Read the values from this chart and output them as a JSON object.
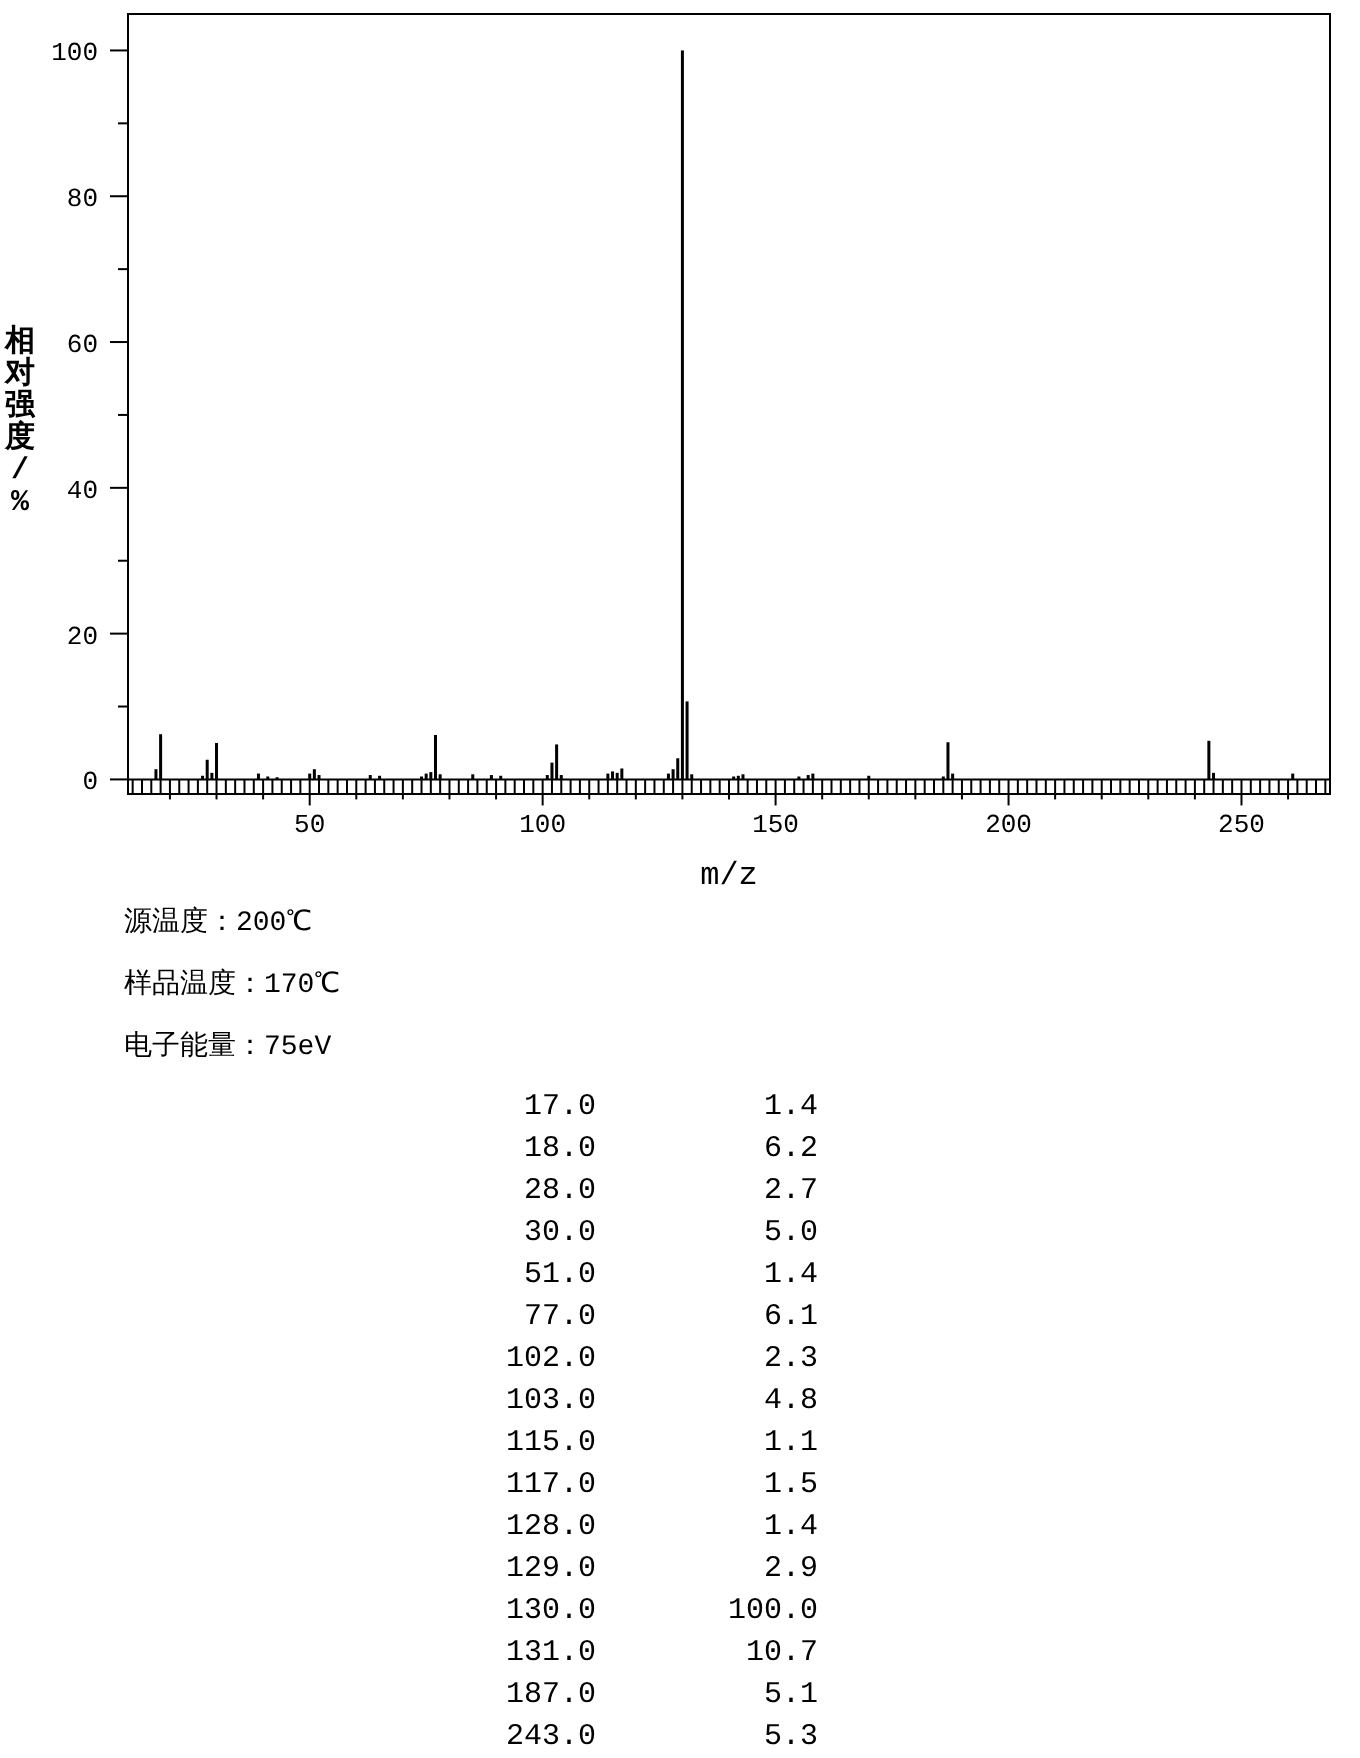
{
  "chart_data": [
    {
      "type": "bar",
      "xlabel": "m/z",
      "ylabel": "相对强度/%",
      "annotations": [
        "源温度：200℃",
        "样品温度：170℃",
        "电子能量：75eV"
      ],
      "xlim": [
        11,
        269
      ],
      "ylim": [
        -2,
        105
      ],
      "xticks": [
        {
          "value": 12,
          "label": null
        },
        {
          "value": 14,
          "label": null
        },
        {
          "value": 16,
          "label": null
        },
        {
          "value": 18,
          "label": null
        },
        {
          "value": 20,
          "label": null
        },
        {
          "value": 22,
          "label": null
        },
        {
          "value": 24,
          "label": null
        },
        {
          "value": 26,
          "label": null
        },
        {
          "value": 28,
          "label": null
        },
        {
          "value": 30,
          "label": null
        },
        {
          "value": 32,
          "label": null
        },
        {
          "value": 34,
          "label": null
        },
        {
          "value": 36,
          "label": null
        },
        {
          "value": 38,
          "label": null
        },
        {
          "value": 40,
          "label": null
        },
        {
          "value": 42,
          "label": null
        },
        {
          "value": 44,
          "label": null
        },
        {
          "value": 46,
          "label": null
        },
        {
          "value": 48,
          "label": null
        },
        50,
        {
          "value": 52,
          "label": null
        },
        {
          "value": 54,
          "label": null
        },
        {
          "value": 56,
          "label": null
        },
        {
          "value": 58,
          "label": null
        },
        {
          "value": 60,
          "label": null
        },
        {
          "value": 62,
          "label": null
        },
        {
          "value": 64,
          "label": null
        },
        {
          "value": 66,
          "label": null
        },
        {
          "value": 68,
          "label": null
        },
        {
          "value": 70,
          "label": null
        },
        {
          "value": 72,
          "label": null
        },
        {
          "value": 74,
          "label": null
        },
        {
          "value": 76,
          "label": null
        },
        {
          "value": 78,
          "label": null
        },
        {
          "value": 80,
          "label": null
        },
        {
          "value": 82,
          "label": null
        },
        {
          "value": 84,
          "label": null
        },
        {
          "value": 86,
          "label": null
        },
        {
          "value": 88,
          "label": null
        },
        {
          "value": 90,
          "label": null
        },
        {
          "value": 92,
          "label": null
        },
        {
          "value": 94,
          "label": null
        },
        {
          "value": 96,
          "label": null
        },
        {
          "value": 98,
          "label": null
        },
        100,
        {
          "value": 102,
          "label": null
        },
        {
          "value": 104,
          "label": null
        },
        {
          "value": 106,
          "label": null
        },
        {
          "value": 108,
          "label": null
        },
        {
          "value": 110,
          "label": null
        },
        {
          "value": 112,
          "label": null
        },
        {
          "value": 114,
          "label": null
        },
        {
          "value": 116,
          "label": null
        },
        {
          "value": 118,
          "label": null
        },
        {
          "value": 120,
          "label": null
        },
        {
          "value": 122,
          "label": null
        },
        {
          "value": 124,
          "label": null
        },
        {
          "value": 126,
          "label": null
        },
        {
          "value": 128,
          "label": null
        },
        {
          "value": 130,
          "label": null
        },
        {
          "value": 132,
          "label": null
        },
        {
          "value": 134,
          "label": null
        },
        {
          "value": 136,
          "label": null
        },
        {
          "value": 138,
          "label": null
        },
        {
          "value": 140,
          "label": null
        },
        {
          "value": 142,
          "label": null
        },
        {
          "value": 144,
          "label": null
        },
        {
          "value": 146,
          "label": null
        },
        {
          "value": 148,
          "label": null
        },
        150,
        {
          "value": 152,
          "label": null
        },
        {
          "value": 154,
          "label": null
        },
        {
          "value": 156,
          "label": null
        },
        {
          "value": 158,
          "label": null
        },
        {
          "value": 160,
          "label": null
        },
        {
          "value": 162,
          "label": null
        },
        {
          "value": 164,
          "label": null
        },
        {
          "value": 166,
          "label": null
        },
        {
          "value": 168,
          "label": null
        },
        {
          "value": 170,
          "label": null
        },
        {
          "value": 172,
          "label": null
        },
        {
          "value": 174,
          "label": null
        },
        {
          "value": 176,
          "label": null
        },
        {
          "value": 178,
          "label": null
        },
        {
          "value": 180,
          "label": null
        },
        {
          "value": 182,
          "label": null
        },
        {
          "value": 184,
          "label": null
        },
        {
          "value": 186,
          "label": null
        },
        {
          "value": 188,
          "label": null
        },
        {
          "value": 190,
          "label": null
        },
        {
          "value": 192,
          "label": null
        },
        {
          "value": 194,
          "label": null
        },
        {
          "value": 196,
          "label": null
        },
        {
          "value": 198,
          "label": null
        },
        200,
        {
          "value": 202,
          "label": null
        },
        {
          "value": 204,
          "label": null
        },
        {
          "value": 206,
          "label": null
        },
        {
          "value": 208,
          "label": null
        },
        {
          "value": 210,
          "label": null
        },
        {
          "value": 212,
          "label": null
        },
        {
          "value": 214,
          "label": null
        },
        {
          "value": 216,
          "label": null
        },
        {
          "value": 218,
          "label": null
        },
        {
          "value": 220,
          "label": null
        },
        {
          "value": 222,
          "label": null
        },
        {
          "value": 224,
          "label": null
        },
        {
          "value": 226,
          "label": null
        },
        {
          "value": 228,
          "label": null
        },
        {
          "value": 230,
          "label": null
        },
        {
          "value": 232,
          "label": null
        },
        {
          "value": 234,
          "label": null
        },
        {
          "value": 236,
          "label": null
        },
        {
          "value": 238,
          "label": null
        },
        {
          "value": 240,
          "label": null
        },
        {
          "value": 242,
          "label": null
        },
        {
          "value": 244,
          "label": null
        },
        {
          "value": 246,
          "label": null
        },
        {
          "value": 248,
          "label": null
        },
        250,
        {
          "value": 252,
          "label": null
        },
        {
          "value": 254,
          "label": null
        },
        {
          "value": 256,
          "label": null
        },
        {
          "value": 258,
          "label": null
        },
        {
          "value": 260,
          "label": null
        },
        {
          "value": 262,
          "label": null
        },
        {
          "value": 264,
          "label": null
        },
        {
          "value": 266,
          "label": null
        },
        {
          "value": 268,
          "label": null
        }
      ],
      "yticks": [
        0,
        {
          "value": 10,
          "label": null
        },
        20,
        {
          "value": 30,
          "label": null
        },
        40,
        {
          "value": 50,
          "label": null
        },
        60,
        {
          "value": 70,
          "label": null
        },
        80,
        {
          "value": 90,
          "label": null
        },
        100
      ],
      "series": [
        {
          "color": "#000000",
          "x": [
            17,
            18,
            27,
            28,
            29,
            30,
            39,
            41,
            43,
            50,
            51,
            52,
            63,
            65,
            74,
            75,
            76,
            77,
            78,
            85,
            89,
            91,
            101,
            102,
            103,
            104,
            114,
            115,
            116,
            117,
            127,
            128,
            129,
            130,
            131,
            132,
            141,
            142,
            143,
            155,
            157,
            158,
            170,
            186,
            187,
            188,
            243,
            244,
            261
          ],
          "values": [
            1.4,
            6.2,
            0.5,
            2.7,
            0.9,
            5.0,
            0.8,
            0.4,
            0.3,
            0.8,
            1.4,
            0.6,
            0.6,
            0.5,
            0.4,
            0.8,
            1.0,
            6.1,
            0.7,
            0.7,
            0.6,
            0.5,
            0.6,
            2.3,
            4.8,
            0.6,
            0.8,
            1.1,
            0.9,
            1.5,
            0.8,
            1.4,
            2.9,
            100.0,
            10.7,
            0.7,
            0.4,
            0.5,
            0.7,
            0.4,
            0.6,
            0.8,
            0.5,
            0.4,
            5.1,
            0.8,
            5.3,
            0.9,
            0.8
          ]
        }
      ]
    },
    {
      "type": "other",
      "annotations": [
        "17.0",
        "1.4",
        "18.0",
        "6.2",
        "28.0",
        "2.7",
        "30.0",
        "5.0",
        "51.0",
        "1.4",
        "77.0",
        "6.1",
        "102.0",
        "2.3",
        "103.0",
        "4.8",
        "115.0",
        "1.1",
        "117.0",
        "1.5",
        "128.0",
        "1.4",
        "129.0",
        "2.9",
        "130.0",
        "100.0",
        "131.0",
        "10.7",
        "187.0",
        "5.1",
        "243.0",
        "5.3"
      ]
    }
  ]
}
